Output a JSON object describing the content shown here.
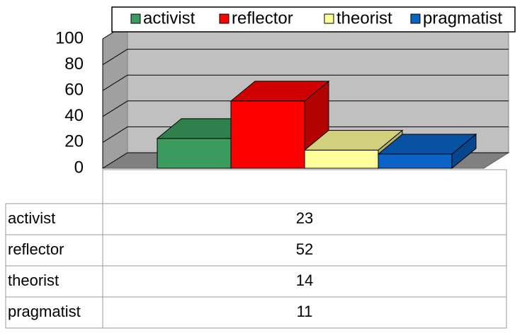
{
  "chart_data": {
    "type": "bar",
    "series": [
      {
        "name": "activist",
        "color": "#3a9c5e",
        "values": [
          23
        ]
      },
      {
        "name": "reflector",
        "color": "#ff0000",
        "values": [
          52
        ]
      },
      {
        "name": "theorist",
        "color": "#ffff99",
        "values": [
          14
        ]
      },
      {
        "name": "pragmatist",
        "color": "#0a64c8",
        "values": [
          11
        ]
      }
    ],
    "ylim": [
      0,
      100
    ],
    "yticks": [
      0,
      20,
      40,
      60,
      80,
      100
    ],
    "grid": true,
    "legend": "top",
    "data_table": true
  }
}
